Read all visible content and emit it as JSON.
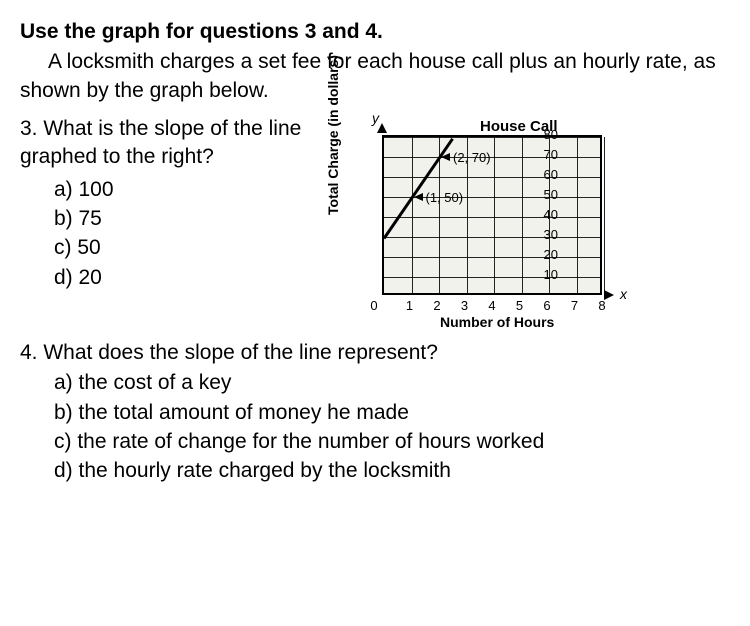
{
  "heading": "Use the graph for questions 3 and 4.",
  "intro": "A locksmith charges a set fee for each house call plus an hourly rate, as shown by the graph below.",
  "q3": {
    "stem": "3. What is the slope of the line graphed to the right?",
    "choices": {
      "a": "a) 100",
      "b": "b) 75",
      "c": "c) 50",
      "d": "d) 20"
    }
  },
  "chart": {
    "type": "line",
    "title": "House Call",
    "ylabel": "Total Charge (in dollars)",
    "xlabel": "Number of Hours",
    "y_axis_letter": "y",
    "x_axis_letter": "x",
    "xlim": [
      0,
      8
    ],
    "ylim": [
      0,
      80
    ],
    "xticks": [
      1,
      2,
      3,
      4,
      5,
      6,
      7,
      8
    ],
    "yticks": [
      10,
      20,
      30,
      40,
      50,
      60,
      70,
      80
    ],
    "origin_label": "0",
    "grid_color": "#000000",
    "background_color": "#f2f2ed",
    "line_color": "#000000",
    "line_width": 3,
    "line_points": [
      [
        0,
        30
      ],
      [
        2.5,
        80
      ]
    ],
    "labeled_points": [
      {
        "xy": [
          1,
          50
        ],
        "label": "(1, 50)"
      },
      {
        "xy": [
          2,
          70
        ],
        "label": "(2, 70)"
      }
    ]
  },
  "q4": {
    "stem": "4. What does the slope of the line represent?",
    "choices": {
      "a": "a) the cost of a key",
      "b": "b) the total amount of money he made",
      "c": "c) the rate of change for the number of hours worked",
      "d": "d) the hourly rate charged by the locksmith"
    }
  }
}
